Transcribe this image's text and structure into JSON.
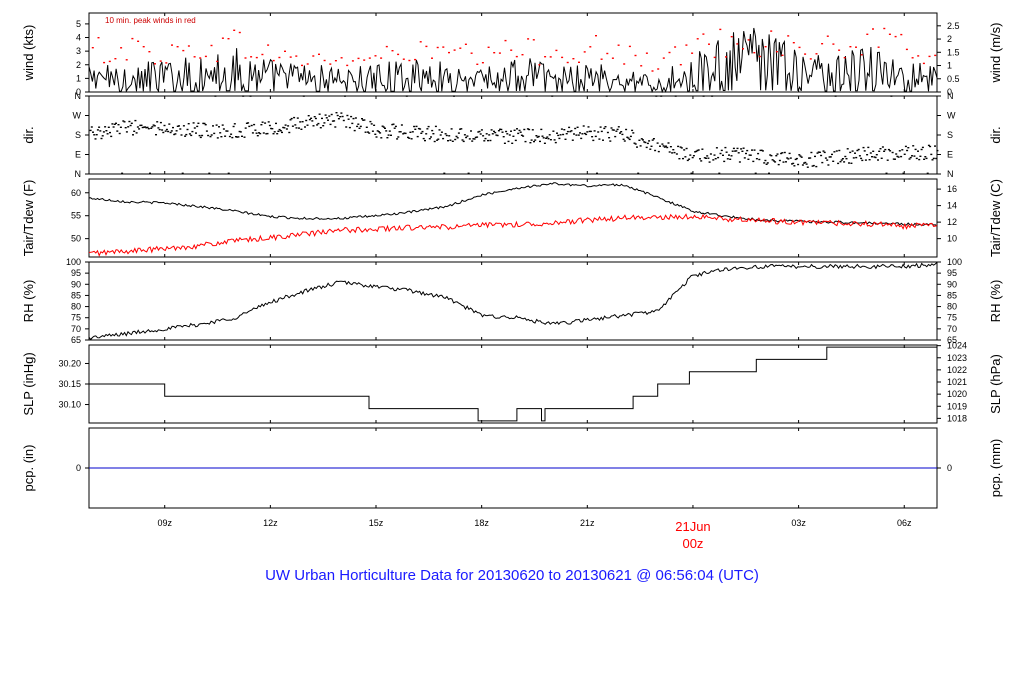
{
  "title": "UW Urban Horticulture Data for 20130620  to  20130621 @ 06:56:04  (UTC)",
  "colors": {
    "black": "#000000",
    "red": "#ff0000",
    "blue": "#0000cc",
    "title": "#1a1aff"
  },
  "chart_data": {
    "type": "line",
    "x_axis": {
      "unit": "hours UTC since 20130620 00z",
      "range": [
        6.85,
        30.93
      ],
      "ticks": [
        {
          "x": 9,
          "label": "09z"
        },
        {
          "x": 12,
          "label": "12z"
        },
        {
          "x": 15,
          "label": "15z"
        },
        {
          "x": 18,
          "label": "18z"
        },
        {
          "x": 21,
          "label": "21z"
        },
        {
          "x": 24,
          "label": "00z",
          "date_label": "21Jun",
          "highlight": true
        },
        {
          "x": 27,
          "label": "03z"
        },
        {
          "x": 30,
          "label": "06z"
        }
      ]
    },
    "panels": [
      {
        "id": "wind",
        "ylabel_left": "wind (kts)",
        "ylabel_right": "wind (m/s)",
        "ylim": [
          0,
          5.8
        ],
        "left_ticks": [
          0,
          1,
          2,
          3,
          4,
          5
        ],
        "right_ticks": [
          {
            "v": 0,
            "label": "0"
          },
          {
            "v": 0.9719,
            "label": "0.5"
          },
          {
            "v": 1.9438,
            "label": "1"
          },
          {
            "v": 2.9158,
            "label": "1.5"
          },
          {
            "v": 3.8877,
            "label": "2"
          },
          {
            "v": 4.8596,
            "label": "2.5"
          }
        ],
        "annotation": "10 min. peak winds in red",
        "series": [
          {
            "role": "wind",
            "color": "#000000",
            "style": "line",
            "x": [
              6.9,
              8,
              9,
              10,
              11,
              12,
              13,
              14,
              15,
              16,
              17,
              18,
              19,
              20,
              21,
              22,
              23,
              24,
              25,
              26,
              27,
              28,
              29,
              30,
              30.9
            ],
            "y": [
              1.0,
              1.2,
              1.2,
              1.5,
              1.8,
              1.3,
              1.1,
              1.0,
              1.1,
              1.3,
              1.2,
              1.0,
              1.5,
              1.0,
              1.3,
              1.0,
              0.5,
              1.7,
              2.3,
              2.6,
              1.6,
              1.4,
              1.9,
              1.3,
              1.1
            ]
          },
          {
            "role": "peak",
            "color": "#ff0000",
            "style": "points",
            "x": [
              6.9,
              8,
              9,
              10,
              11,
              12,
              13,
              14,
              15,
              16,
              17,
              18,
              19,
              20,
              21,
              22,
              23,
              24,
              25,
              26,
              27,
              28,
              29,
              30,
              30.9
            ],
            "y": [
              3.3,
              3.5,
              3.0,
              3.5,
              3.9,
              3.0,
              2.6,
              2.5,
              2.8,
              3.2,
              3.2,
              2.7,
              3.5,
              3.1,
              3.6,
              3.0,
              2.2,
              3.6,
              4.2,
              4.2,
              3.5,
              3.4,
              4.1,
              3.6,
              3.0
            ]
          }
        ]
      },
      {
        "id": "dir",
        "ylabel_left": "dir.",
        "ylabel_right": "dir.",
        "ylim": [
          0,
          360
        ],
        "left_ticks": [
          {
            "v": 0,
            "label": "N"
          },
          {
            "v": 90,
            "label": "E"
          },
          {
            "v": 180,
            "label": "S"
          },
          {
            "v": 270,
            "label": "W"
          },
          {
            "v": 360,
            "label": "N"
          }
        ],
        "right_ticks": [
          {
            "v": 0,
            "label": "N"
          },
          {
            "v": 90,
            "label": "E"
          },
          {
            "v": 180,
            "label": "S"
          },
          {
            "v": 270,
            "label": "W"
          },
          {
            "v": 360,
            "label": "N"
          }
        ],
        "series": [
          {
            "role": "direction",
            "color": "#000000",
            "style": "points",
            "x": [
              6.9,
              8,
              9,
              10,
              11,
              12,
              13,
              14,
              15,
              16,
              17,
              18,
              19,
              20,
              21,
              22,
              23,
              24,
              25,
              26,
              27,
              28,
              29,
              30,
              30.9
            ],
            "y": [
              190,
              215,
              205,
              200,
              200,
              205,
              240,
              250,
              200,
              190,
              180,
              170,
              175,
              170,
              190,
              180,
              120,
              80,
              90,
              75,
              60,
              75,
              90,
              100,
              95
            ]
          }
        ]
      },
      {
        "id": "temp",
        "ylabel_left": "Tair/Tdew (F)",
        "ylabel_right": "Tair/Tdew (C)",
        "ylim": [
          46,
          63
        ],
        "left_ticks": [
          50,
          55,
          60
        ],
        "right_ticks": [
          {
            "v": 50,
            "label": "10"
          },
          {
            "v": 53.6,
            "label": "12"
          },
          {
            "v": 57.2,
            "label": "14"
          },
          {
            "v": 60.8,
            "label": "16"
          }
        ],
        "series": [
          {
            "role": "Tair",
            "color": "#000000",
            "style": "line",
            "x": [
              6.9,
              8,
              9,
              10,
              11,
              12,
              13,
              14,
              15,
              16,
              17,
              18,
              19,
              20,
              21,
              22,
              23,
              24,
              25,
              26,
              27,
              28,
              29,
              30,
              30.9
            ],
            "y": [
              58.8,
              58.0,
              57.8,
              57.0,
              56.0,
              54.8,
              54.4,
              54.4,
              55.0,
              55.8,
              57.0,
              59.5,
              61.0,
              62.0,
              61.5,
              61.8,
              59.0,
              56.0,
              54.8,
              54.0,
              53.8,
              53.6,
              53.4,
              53.2,
              53.0
            ]
          },
          {
            "role": "Tdew",
            "color": "#ff0000",
            "style": "line",
            "x": [
              6.9,
              8,
              9,
              10,
              11,
              12,
              13,
              14,
              15,
              16,
              17,
              18,
              19,
              20,
              21,
              22,
              23,
              24,
              25,
              26,
              27,
              28,
              29,
              30,
              30.9
            ],
            "y": [
              46.8,
              47.3,
              47.8,
              48.5,
              49.5,
              50.2,
              51.0,
              51.8,
              52.1,
              52.4,
              52.5,
              52.9,
              53.1,
              53.4,
              54.0,
              54.5,
              54.6,
              54.8,
              54.3,
              53.9,
              53.6,
              53.4,
              53.2,
              52.7,
              53.0
            ]
          }
        ]
      },
      {
        "id": "rh",
        "ylabel_left": "RH (%)",
        "ylabel_right": "RH (%)",
        "ylim": [
          65,
          100
        ],
        "left_ticks": [
          65,
          70,
          75,
          80,
          85,
          90,
          95,
          100
        ],
        "right_ticks": [
          {
            "v": 65,
            "label": "65"
          },
          {
            "v": 70,
            "label": "70"
          },
          {
            "v": 75,
            "label": "75"
          },
          {
            "v": 80,
            "label": "80"
          },
          {
            "v": 85,
            "label": "85"
          },
          {
            "v": 90,
            "label": "90"
          },
          {
            "v": 95,
            "label": "95"
          },
          {
            "v": 100,
            "label": "100"
          }
        ],
        "series": [
          {
            "role": "RH",
            "color": "#000000",
            "style": "line",
            "x": [
              6.9,
              8,
              9,
              10,
              11,
              12,
              13,
              14,
              15,
              16,
              17,
              18,
              19,
              20,
              21,
              22,
              23,
              24,
              25,
              26,
              27,
              28,
              29,
              30,
              30.9
            ],
            "y": [
              66,
              68,
              70,
              72,
              75,
              82,
              87,
              91,
              89,
              87,
              84,
              76,
              75,
              72,
              74,
              76,
              78,
              94,
              97,
              98,
              98,
              98,
              98,
              98,
              99
            ]
          }
        ]
      },
      {
        "id": "slp",
        "ylabel_left": "SLP (inHg)",
        "ylabel_right": "SLP (hPa)",
        "ylim": [
          30.055,
          30.245
        ],
        "left_ticks": [
          {
            "v": 30.1,
            "label": "30.10"
          },
          {
            "v": 30.15,
            "label": "30.15"
          },
          {
            "v": 30.2,
            "label": "30.20"
          }
        ],
        "right_ticks": [
          {
            "v": 30.0663,
            "label": "1018"
          },
          {
            "v": 30.0958,
            "label": "1019"
          },
          {
            "v": 30.1253,
            "label": "1020"
          },
          {
            "v": 30.1549,
            "label": "1021"
          },
          {
            "v": 30.1844,
            "label": "1022"
          },
          {
            "v": 30.2139,
            "label": "1023"
          },
          {
            "v": 30.2434,
            "label": "1024"
          }
        ],
        "series": [
          {
            "role": "SLP",
            "color": "#000000",
            "style": "step",
            "x": [
              6.85,
              9.0,
              9.0,
              14.8,
              14.8,
              17.9,
              17.9,
              19.0,
              19.0,
              19.7,
              19.7,
              19.8,
              19.8,
              22.3,
              22.3,
              23.0,
              23.0,
              23.9,
              23.9,
              25.8,
              25.8,
              27.8,
              27.8,
              30.93
            ],
            "y": [
              30.15,
              30.15,
              30.12,
              30.12,
              30.09,
              30.09,
              30.06,
              30.06,
              30.09,
              30.09,
              30.06,
              30.06,
              30.09,
              30.09,
              30.12,
              30.12,
              30.15,
              30.15,
              30.18,
              30.18,
              30.21,
              30.21,
              30.24,
              30.24
            ]
          }
        ]
      },
      {
        "id": "pcp",
        "ylabel_left": "pcp. (in)",
        "ylabel_right": "pcp. (mm)",
        "ylim": [
          -1,
          1
        ],
        "left_ticks": [
          {
            "v": 0,
            "label": "0"
          }
        ],
        "right_ticks": [
          {
            "v": 0,
            "label": "0"
          }
        ],
        "series": [
          {
            "role": "precip",
            "color": "#0000cc",
            "style": "line",
            "x": [
              6.85,
              30.93
            ],
            "y": [
              0,
              0
            ]
          }
        ]
      }
    ]
  }
}
